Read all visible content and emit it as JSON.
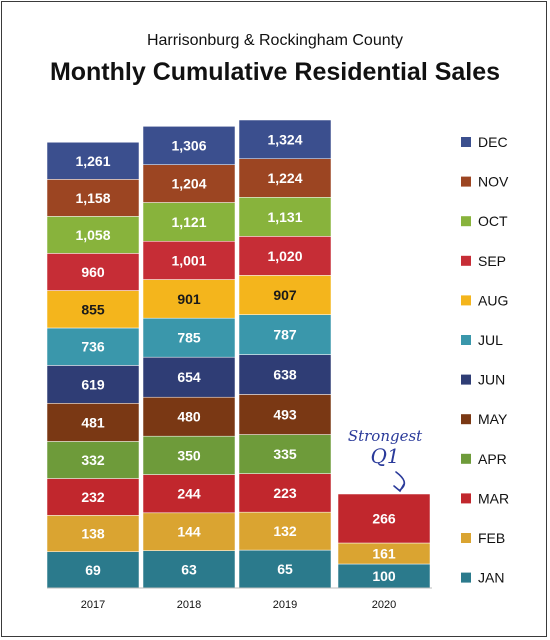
{
  "subtitle": "Harrisonburg & Rockingham County",
  "title": "Monthly Cumulative Residential Sales",
  "annotation": {
    "line1": "Strongest",
    "line2": "Q1"
  },
  "chart_data": {
    "type": "bar",
    "stacked": true,
    "categories": [
      "2017",
      "2018",
      "2019",
      "2020"
    ],
    "months": [
      "JAN",
      "FEB",
      "MAR",
      "APR",
      "MAY",
      "JUN",
      "JUL",
      "AUG",
      "SEP",
      "OCT",
      "NOV",
      "DEC"
    ],
    "colors": [
      "#2b7a8c",
      "#daa431",
      "#c1272d",
      "#6e9b3a",
      "#7a3814",
      "#2f3d75",
      "#3a97ab",
      "#f4b51c",
      "#c62d36",
      "#88b33c",
      "#9c4522",
      "#3b4f8e"
    ],
    "values": {
      "2017": [
        69,
        138,
        232,
        332,
        481,
        619,
        736,
        855,
        960,
        1058,
        1158,
        1261
      ],
      "2018": [
        63,
        144,
        244,
        350,
        480,
        654,
        785,
        901,
        1001,
        1121,
        1204,
        1306
      ],
      "2019": [
        65,
        132,
        223,
        335,
        493,
        638,
        787,
        907,
        1020,
        1131,
        1224,
        1324
      ],
      "2020": [
        100,
        161,
        266
      ]
    },
    "legend": [
      "DEC",
      "NOV",
      "OCT",
      "SEP",
      "AUG",
      "JUL",
      "JUN",
      "MAY",
      "APR",
      "MAR",
      "FEB",
      "JAN"
    ],
    "legend_position": "right",
    "grid": false
  }
}
